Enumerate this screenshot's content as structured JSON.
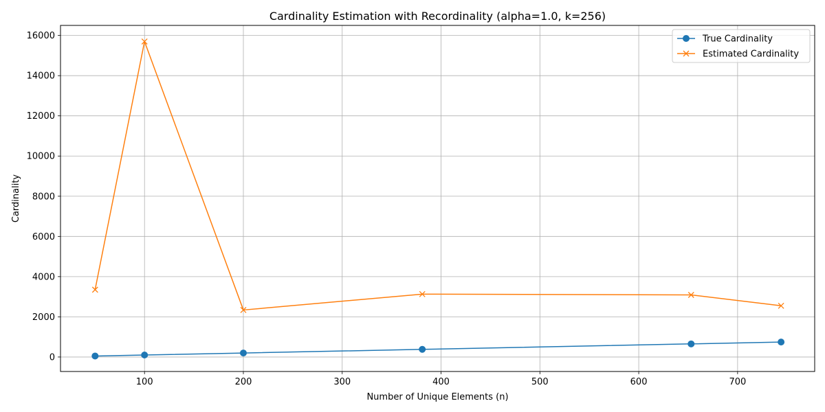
{
  "chart_data": {
    "type": "line",
    "title": "Cardinality Estimation with Recordinality (alpha=1.0, k=256)",
    "xlabel": "Number of Unique Elements (n)",
    "ylabel": "Cardinality",
    "xlim": [
      15,
      778
    ],
    "ylim": [
      -720,
      16500
    ],
    "xticks": [
      100,
      200,
      300,
      400,
      500,
      600,
      700
    ],
    "yticks": [
      0,
      2000,
      4000,
      6000,
      8000,
      10000,
      12000,
      14000,
      16000
    ],
    "grid": true,
    "legend_position": "top-right",
    "series": [
      {
        "name": "True Cardinality",
        "color": "#1f77b4",
        "marker": "circle",
        "x": [
          50,
          100,
          200,
          381,
          653,
          744
        ],
        "y": [
          50,
          100,
          200,
          381,
          653,
          744
        ]
      },
      {
        "name": "Estimated Cardinality",
        "color": "#ff7f0e",
        "marker": "x",
        "x": [
          50,
          100,
          200,
          381,
          653,
          744
        ],
        "y": [
          3350,
          15700,
          2340,
          3130,
          3090,
          2550
        ]
      }
    ]
  }
}
